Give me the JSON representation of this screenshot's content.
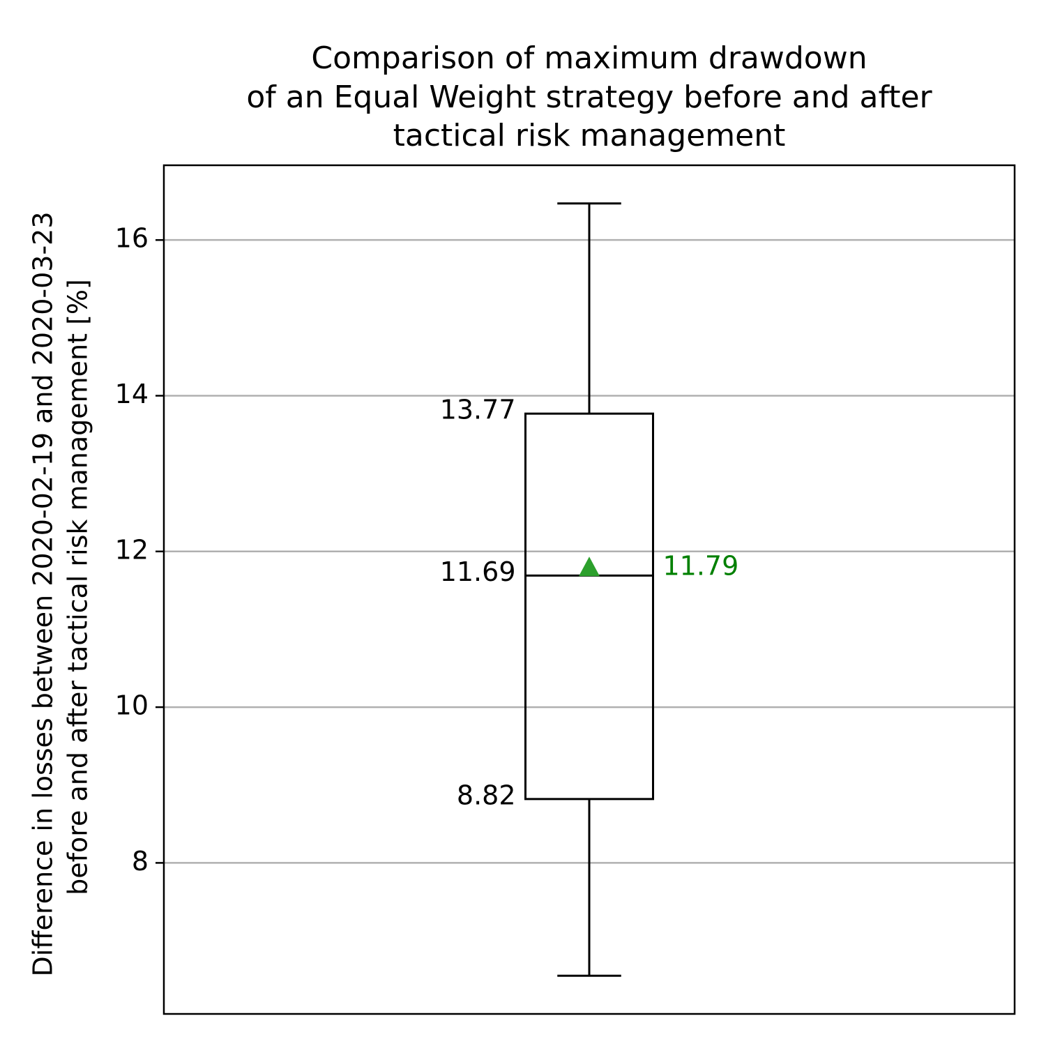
{
  "chart_data": {
    "type": "box",
    "title": [
      "Comparison of maximum drawdown",
      "of an Equal Weight strategy before and after",
      "tactical risk management"
    ],
    "y_label": [
      "Difference in losses between 2020-02-19 and 2020-03-23",
      "before and after tactical risk management [%]"
    ],
    "boxes": [
      {
        "whislo": 6.55,
        "q1": 8.82,
        "med": 11.69,
        "q3": 13.77,
        "whishi": 16.47,
        "mean": 11.79
      }
    ],
    "color": "#000000",
    "mean_color": "#2ca02c",
    "mean_label_color": "#008000",
    "ylim": [
      6.06,
      16.96
    ],
    "yticks": [
      8,
      10,
      12,
      14,
      16
    ],
    "grid": true
  }
}
